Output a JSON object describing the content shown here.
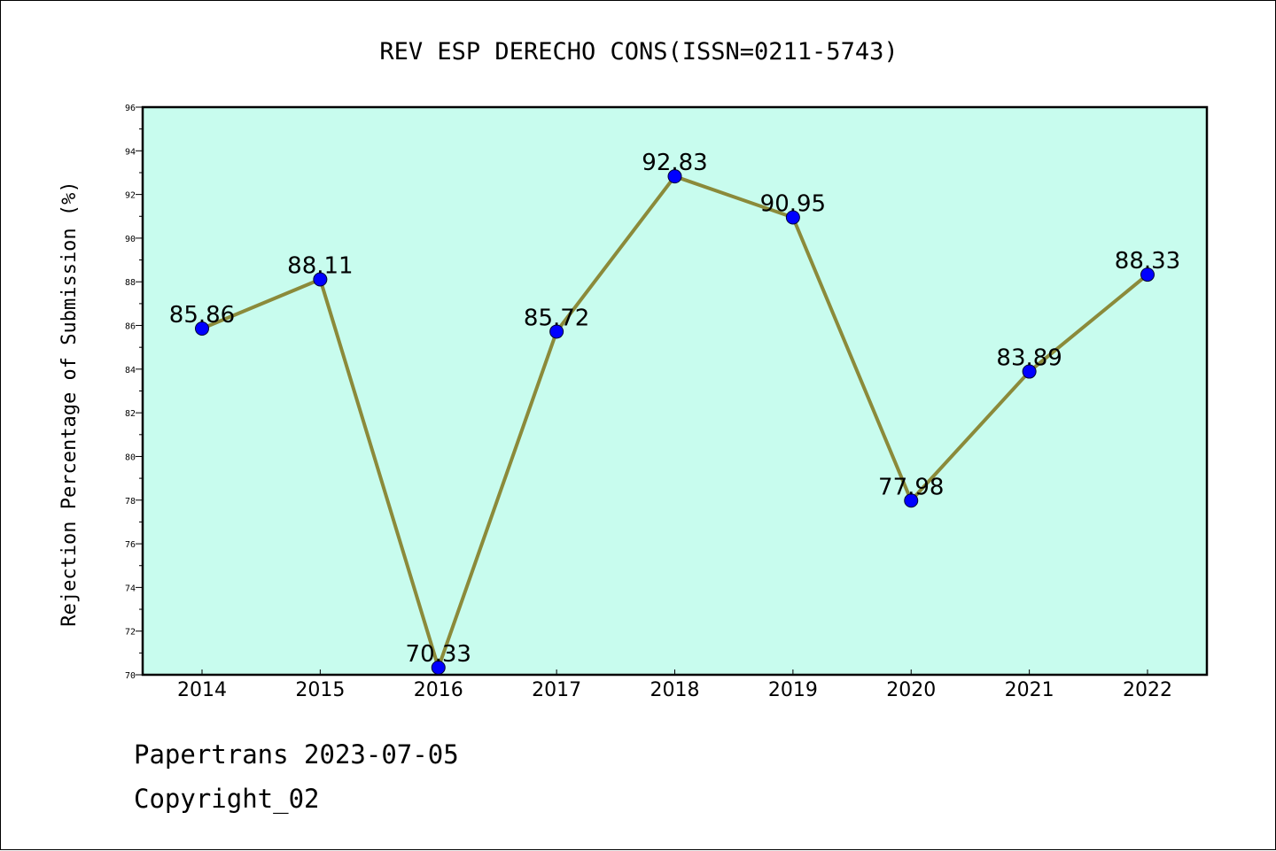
{
  "chart_data": {
    "type": "line",
    "title": "REV ESP DERECHO CONS(ISSN=0211-5743)",
    "xlabel": "",
    "ylabel": "Rejection Percentage of Submission (%)",
    "categories": [
      "2014",
      "2015",
      "2016",
      "2017",
      "2018",
      "2019",
      "2020",
      "2021",
      "2022"
    ],
    "series": [
      {
        "values": [
          85.86,
          88.11,
          70.33,
          85.72,
          92.83,
          90.95,
          77.98,
          83.89,
          88.33
        ],
        "labels": [
          "85.86",
          "88.11",
          "70.33",
          "85.72",
          "92.83",
          "90.95",
          "77.98",
          "83.89",
          "88.33"
        ],
        "line_color": "#8b8a3a",
        "marker_color": "#0000ff"
      }
    ],
    "ylim": [
      70,
      96
    ],
    "yticks": [
      "70",
      "72",
      "74",
      "76",
      "78",
      "80",
      "82",
      "84",
      "86",
      "88",
      "90",
      "92",
      "94",
      "96"
    ],
    "grid": false,
    "plot_background": "#c8fcee"
  },
  "footer": {
    "line1": "Papertrans 2023-07-05",
    "line2": "Copyright_02"
  }
}
